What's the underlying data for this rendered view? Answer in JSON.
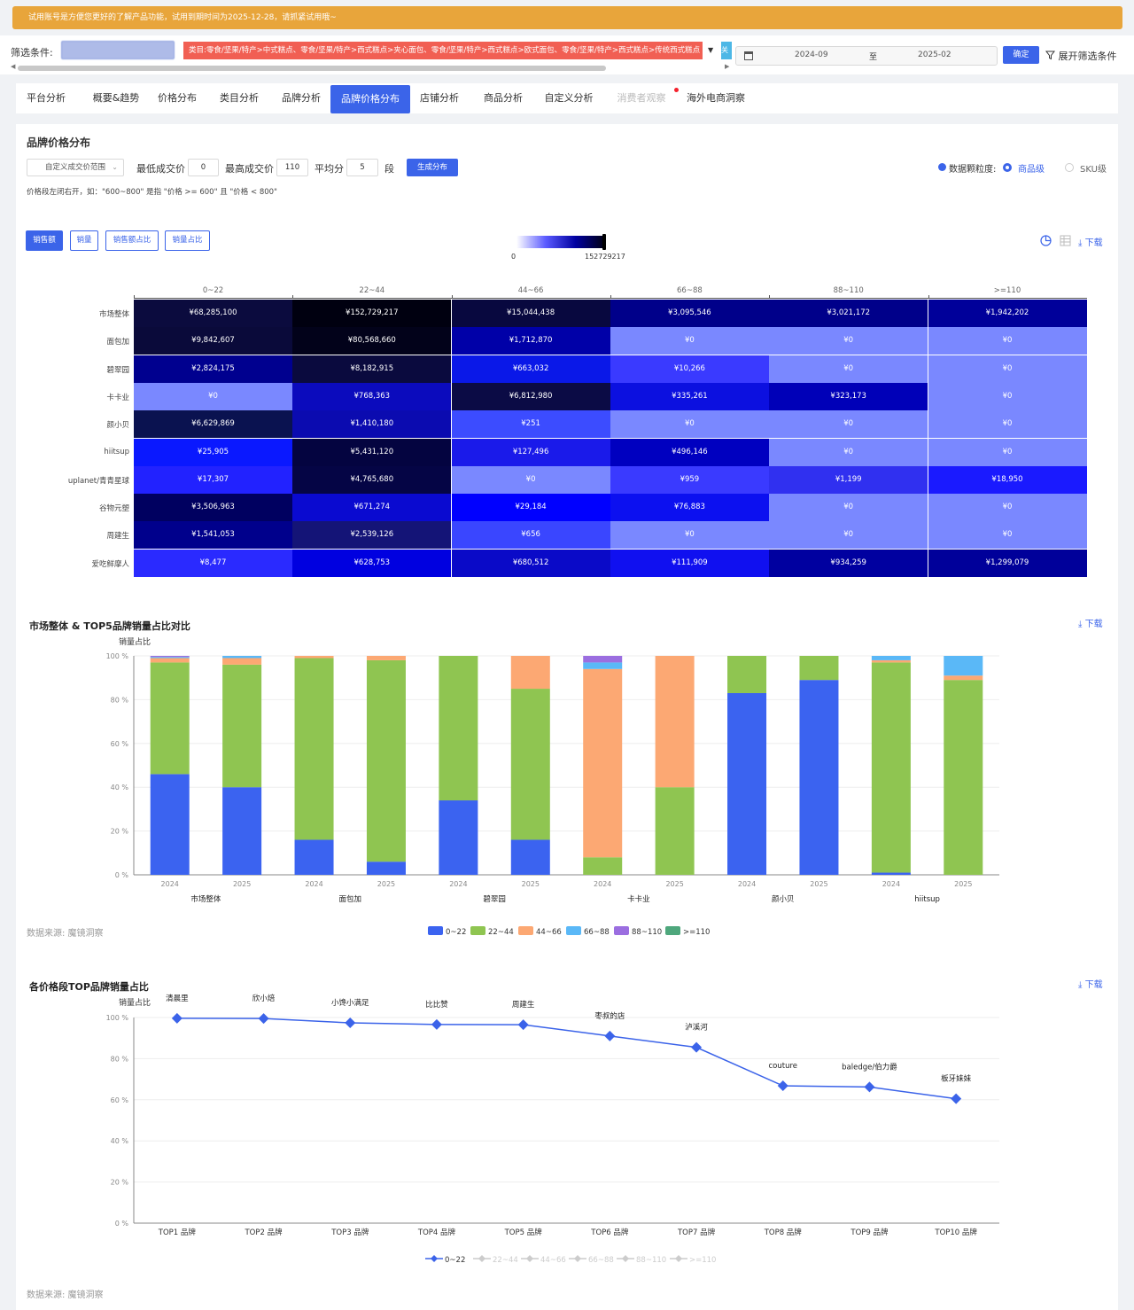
{
  "banner": "试用账号是方便您更好的了解产品功能，试用到期时间为2025-12-28，请抓紧试用哦~",
  "filter": {
    "label": "筛选条件:",
    "category": "类目:零食/坚果/特产>中式糕点、零食/坚果/特产>西式糕点>夹心面包、零食/坚果/特产>西式糕点>欧式面包、零食/坚果/特产>西式糕点>传统西式糕点",
    "blue_stub": "关",
    "date_from": "2024-09",
    "date_sep": "至",
    "date_to": "2025-02",
    "confirm": "确定",
    "expand": "展开筛选条件"
  },
  "tabs": [
    {
      "label": "平台分析",
      "state": "normal"
    },
    {
      "label": "概要&趋势",
      "state": "normal"
    },
    {
      "label": "价格分布",
      "state": "normal"
    },
    {
      "label": "类目分析",
      "state": "normal"
    },
    {
      "label": "品牌分析",
      "state": "normal"
    },
    {
      "label": "品牌价格分布",
      "state": "active"
    },
    {
      "label": "店铺分析",
      "state": "normal"
    },
    {
      "label": "商品分析",
      "state": "normal"
    },
    {
      "label": "自定义分析",
      "state": "normal"
    },
    {
      "label": "消费者观察",
      "state": "disabled"
    },
    {
      "label": "海外电商洞察",
      "state": "normal"
    }
  ],
  "panel": {
    "title": "品牌价格分布",
    "range_select": "自定义成交价范围",
    "min_label": "最低成交价",
    "min_value": "0",
    "max_label": "最高成交价",
    "max_value": "110",
    "avg_label": "平均分",
    "avg_value": "5",
    "seg_label": "段",
    "generate": "生成分布",
    "granularity_label": "数据颗粒度:",
    "gran_product": "商品级",
    "gran_sku": "SKU级",
    "note": "价格段左闭右开，如：\"600~800\" 是指 \"价格 >= 600\" 且 \"价格 < 800\"",
    "metrics": [
      "销售额",
      "销量",
      "销售额占比",
      "销量占比"
    ],
    "legend_min": "0",
    "legend_max": "152729217",
    "download": "下载"
  },
  "heatmap": {
    "columns": [
      "0~22",
      "22~44",
      "44~66",
      "66~88",
      "88~110",
      ">=110"
    ],
    "rows": [
      {
        "brand": "市场整体",
        "cells": [
          "¥68,285,100",
          "¥152,729,217",
          "¥15,044,438",
          "¥3,095,546",
          "¥3,021,172",
          "¥1,942,202"
        ],
        "colors": [
          "#0b0b3e",
          "#000010",
          "#08083f",
          "#00008a",
          "#00008a",
          "#00009a"
        ]
      },
      {
        "brand": "面包加",
        "cells": [
          "¥9,842,607",
          "¥80,568,660",
          "¥1,712,870",
          "¥0",
          "¥0",
          "¥0"
        ],
        "colors": [
          "#0a0a3a",
          "#02021a",
          "#0000a8",
          "#7a88ff",
          "#7a88ff",
          "#7a88ff"
        ]
      },
      {
        "brand": "碧翠园",
        "cells": [
          "¥2,824,175",
          "¥8,182,915",
          "¥663,032",
          "¥10,266",
          "¥0",
          "¥0"
        ],
        "colors": [
          "#00008f",
          "#0a0a3e",
          "#0a18e8",
          "#3a3aff",
          "#7a88ff",
          "#7a88ff"
        ]
      },
      {
        "brand": "卡卡业",
        "cells": [
          "¥0",
          "¥768,363",
          "¥6,812,980",
          "¥335,261",
          "¥323,173",
          "¥0"
        ],
        "colors": [
          "#7a88ff",
          "#0b0bbd",
          "#0b0b45",
          "#0c10e0",
          "#0000b8",
          "#7a88ff"
        ]
      },
      {
        "brand": "颜小贝",
        "cells": [
          "¥6,629,869",
          "¥1,410,180",
          "¥251",
          "¥0",
          "¥0",
          "¥0"
        ],
        "colors": [
          "#0a1250",
          "#0b0bb0",
          "#3c4cff",
          "#7a88ff",
          "#7a88ff",
          "#7a88ff"
        ]
      },
      {
        "brand": "hiitsup",
        "cells": [
          "¥25,905",
          "¥5,431,120",
          "¥127,496",
          "¥496,146",
          "¥0",
          "¥0"
        ],
        "colors": [
          "#0a18ff",
          "#040440",
          "#1a1aea",
          "#0000c0",
          "#7a88ff",
          "#7a88ff"
        ]
      },
      {
        "brand": "uplanet/青青星球",
        "cells": [
          "¥17,307",
          "¥4,765,680",
          "¥0",
          "¥959",
          "¥1,199",
          "¥18,950"
        ],
        "colors": [
          "#2222ff",
          "#050545",
          "#7a88ff",
          "#3a3aff",
          "#3030f0",
          "#1a1aff"
        ]
      },
      {
        "brand": "谷物元塑",
        "cells": [
          "¥3,506,963",
          "¥671,274",
          "¥29,184",
          "¥76,883",
          "¥0",
          "¥0"
        ],
        "colors": [
          "#000060",
          "#0a0ad0",
          "#0000ff",
          "#0c10f0",
          "#7a88ff",
          "#7a88ff"
        ]
      },
      {
        "brand": "周建生",
        "cells": [
          "¥1,541,053",
          "¥2,539,126",
          "¥656",
          "¥0",
          "¥0",
          "¥0"
        ],
        "colors": [
          "#00008c",
          "#141477",
          "#3a46ff",
          "#7a88ff",
          "#7a88ff",
          "#7a88ff"
        ]
      },
      {
        "brand": "爱吃鲜摩人",
        "cells": [
          "¥8,477",
          "¥628,753",
          "¥680,512",
          "¥111,909",
          "¥934,259",
          "¥1,299,079"
        ],
        "colors": [
          "#2a2aff",
          "#0000e0",
          "#0a0ac8",
          "#1010f0",
          "#0000a0",
          "#00009a"
        ]
      }
    ]
  },
  "stacked": {
    "title": "市场整体 & TOP5品牌销量占比对比",
    "ylabel": "销量占比",
    "source": "数据来源: 魔镜洞察",
    "download": "下载",
    "chart_data": {
      "type": "bar",
      "stacked": true,
      "ylim": [
        0,
        100
      ],
      "yticks": [
        "0 %",
        "20 %",
        "40 %",
        "60 %",
        "80 %",
        "100 %"
      ],
      "years": [
        "2024",
        "2025",
        "2024",
        "2025",
        "2024",
        "2025",
        "2024",
        "2025",
        "2024",
        "2025",
        "2024",
        "2025"
      ],
      "groups": [
        "市场整体",
        "面包加",
        "碧翠园",
        "卡卡业",
        "颜小贝",
        "hiitsup"
      ],
      "series": [
        {
          "name": "0~22",
          "color": "#3b63f0",
          "values": [
            46,
            40,
            16,
            6,
            34,
            16,
            0,
            0,
            83,
            89,
            1,
            0
          ]
        },
        {
          "name": "22~44",
          "color": "#8fc551",
          "values": [
            51,
            56,
            83,
            92,
            66,
            69,
            8,
            40,
            17,
            11,
            96,
            89
          ]
        },
        {
          "name": "44~66",
          "color": "#fca873",
          "values": [
            2,
            3,
            1,
            2,
            0,
            15,
            86,
            60,
            0,
            0,
            1,
            2
          ]
        },
        {
          "name": "66~88",
          "color": "#5ab8f7",
          "values": [
            0.5,
            1,
            0,
            0,
            0,
            0,
            3,
            0,
            0,
            0,
            2,
            9
          ]
        },
        {
          "name": "88~110",
          "color": "#9b6ee0",
          "values": [
            0.5,
            0,
            0,
            0,
            0,
            0,
            3,
            0,
            0,
            0,
            0,
            0
          ]
        },
        {
          "name": ">=110",
          "color": "#4ea77c",
          "values": [
            0,
            0,
            0,
            0,
            0,
            0,
            0,
            0,
            0,
            0,
            0,
            0
          ]
        }
      ]
    }
  },
  "line": {
    "title": "各价格段TOP品牌销量占比",
    "ylabel": "销量占比",
    "source": "数据来源: 魔镜洞察",
    "download": "下载",
    "chart_data": {
      "type": "line",
      "ylim": [
        0,
        100
      ],
      "yticks": [
        "0 %",
        "20 %",
        "40 %",
        "60 %",
        "80 %",
        "100 %"
      ],
      "categories": [
        "TOP1 品牌",
        "TOP2 品牌",
        "TOP3 品牌",
        "TOP4 品牌",
        "TOP5 品牌",
        "TOP6 品牌",
        "TOP7 品牌",
        "TOP8 品牌",
        "TOP9 品牌",
        "TOP10 品牌"
      ],
      "series": [
        {
          "name": "0~22",
          "color": "#3b63e9",
          "values": [
            99.6,
            99.5,
            97.4,
            96.6,
            96.5,
            91,
            85.5,
            66.8,
            66.2,
            60.5
          ],
          "point_labels": [
            "清晨里",
            "欣小焙",
            "小馋小满足",
            "比比赞",
            "周建生",
            "枣叔的店",
            "泸溪河",
            "couture",
            "baledge/伯力爵",
            "板牙妹妹"
          ]
        }
      ],
      "legend": [
        "0~22",
        "22~44",
        "44~66",
        "66~88",
        "88~110",
        ">=110"
      ],
      "legend_active": "0~22"
    }
  }
}
